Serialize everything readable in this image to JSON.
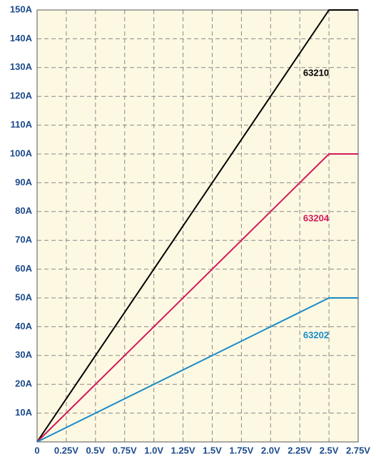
{
  "chart_data": {
    "type": "line",
    "x": [
      0,
      2.5,
      2.75
    ],
    "series": [
      {
        "name": "63210",
        "color": "#000000",
        "values": [
          0,
          150,
          150
        ]
      },
      {
        "name": "63204",
        "color": "#d21a5c",
        "values": [
          0,
          100,
          100
        ]
      },
      {
        "name": "63202",
        "color": "#1a8bc8",
        "values": [
          0,
          50,
          50
        ]
      }
    ],
    "xlim": [
      0,
      2.75
    ],
    "xticks": [
      0,
      {
        "value": 0.25,
        "label": "0.25V"
      },
      {
        "value": 0.5,
        "label": "0.5V"
      },
      {
        "value": 0.75,
        "label": "0.75V"
      },
      {
        "value": 1.0,
        "label": "1.0V"
      },
      {
        "value": 1.25,
        "label": "1.25V"
      },
      {
        "value": 1.5,
        "label": "1.5V"
      },
      {
        "value": 1.75,
        "label": "1.75V"
      },
      {
        "value": 2.0,
        "label": "2.0V"
      },
      {
        "value": 2.25,
        "label": "2.25V"
      },
      {
        "value": 2.5,
        "label": "2.5V"
      },
      {
        "value": 2.75,
        "label": "2.75V"
      }
    ],
    "ylim": [
      0,
      150
    ],
    "yticks": [
      {
        "value": 10,
        "label": "10A"
      },
      {
        "value": 20,
        "label": "20A"
      },
      {
        "value": 30,
        "label": "30A"
      },
      {
        "value": 40,
        "label": "40A"
      },
      {
        "value": 50,
        "label": "50A"
      },
      {
        "value": 60,
        "label": "60A"
      },
      {
        "value": 70,
        "label": "70A"
      },
      {
        "value": 80,
        "label": "80A"
      },
      {
        "value": 90,
        "label": "90A"
      },
      {
        "value": 100,
        "label": "100A"
      },
      {
        "value": 110,
        "label": "110A"
      },
      {
        "value": 120,
        "label": "120A"
      },
      {
        "value": 130,
        "label": "130A"
      },
      {
        "value": 140,
        "label": "140A"
      },
      {
        "value": 150,
        "label": "150A"
      }
    ],
    "grid": true
  }
}
